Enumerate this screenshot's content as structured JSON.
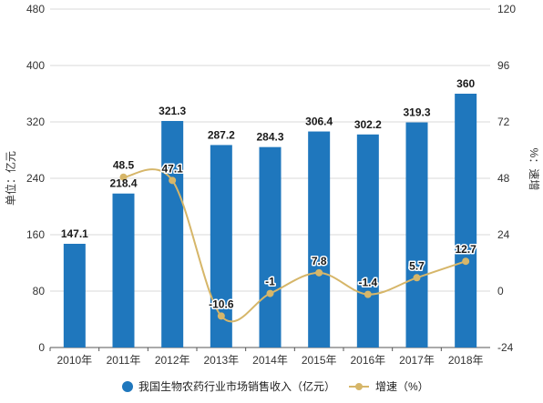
{
  "chart_data": {
    "type": "bar",
    "categories": [
      "2010年",
      "2011年",
      "2012年",
      "2013年",
      "2014年",
      "2015年",
      "2016年",
      "2017年",
      "2018年"
    ],
    "series": [
      {
        "name": "我国生物农药行业市场销售收入（亿元）",
        "type": "bar",
        "axis": "left",
        "values": [
          147.1,
          218.4,
          321.3,
          287.2,
          284.3,
          306.4,
          302.2,
          319.3,
          360
        ],
        "labels": [
          "147.1",
          "218.4",
          "321.3",
          "287.2",
          "284.3",
          "306.4",
          "302.2",
          "319.3",
          "360"
        ]
      },
      {
        "name": "增速（%）",
        "type": "line",
        "axis": "right",
        "values": [
          null,
          48.5,
          47.1,
          -10.6,
          -1,
          7.8,
          -1.4,
          5.7,
          12.7
        ],
        "labels": [
          "",
          "48.5",
          "47.1",
          "-10.6",
          "-1",
          "7.8",
          "-1.4",
          "5.7",
          "12.7"
        ]
      }
    ],
    "ylabel_left": "单位：亿元",
    "ylabel_right": "%：速增",
    "ylim_left": [
      0,
      480
    ],
    "yticks_left": [
      "0",
      "80",
      "160",
      "240",
      "320",
      "400",
      "480"
    ],
    "ylim_right": [
      -24,
      120
    ],
    "yticks_right": [
      "-24",
      "0",
      "24",
      "48",
      "72",
      "96",
      "120"
    ],
    "grid": true,
    "legend_position": "bottom-center",
    "colors": {
      "bar": "#1f77bd",
      "line": "#d6b669"
    }
  }
}
